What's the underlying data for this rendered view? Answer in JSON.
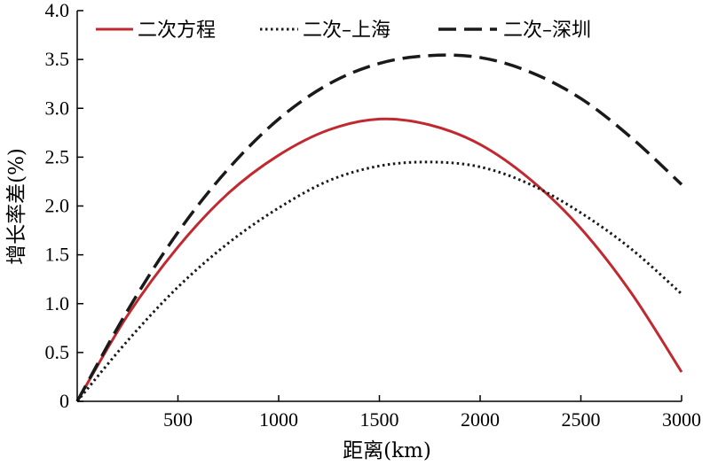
{
  "chart_data": {
    "type": "line",
    "xlabel": "距离(km)",
    "ylabel": "增长率差(%)",
    "xlim": [
      0,
      3000
    ],
    "ylim": [
      0,
      4.0
    ],
    "x_ticks": [
      "500",
      "1000",
      "1500",
      "2000",
      "2500",
      "3000"
    ],
    "y_ticks": [
      "0",
      "0.5",
      "1.0",
      "1.5",
      "2.0",
      "2.5",
      "3.0",
      "3.5",
      "4.0"
    ],
    "grid": false,
    "legend_position": "top",
    "x": [
      0,
      250,
      500,
      750,
      1000,
      1250,
      1500,
      1750,
      2000,
      2250,
      2500,
      2750,
      3000
    ],
    "series": [
      {
        "name": "二次方程",
        "color": "#c0292f",
        "style": "solid",
        "values": [
          0,
          0.88,
          1.58,
          2.13,
          2.52,
          2.78,
          2.89,
          2.83,
          2.63,
          2.27,
          1.77,
          1.11,
          0.3
        ]
      },
      {
        "name": "二次–上海",
        "color": "#1a1a1a",
        "style": "dotted",
        "values": [
          0,
          0.62,
          1.17,
          1.62,
          1.98,
          2.26,
          2.41,
          2.45,
          2.4,
          2.22,
          1.93,
          1.56,
          1.1
        ]
      },
      {
        "name": "二次–深圳",
        "color": "#1a1a1a",
        "style": "dashed",
        "values": [
          0,
          0.93,
          1.73,
          2.38,
          2.89,
          3.25,
          3.46,
          3.54,
          3.52,
          3.37,
          3.1,
          2.7,
          2.22
        ]
      }
    ]
  }
}
